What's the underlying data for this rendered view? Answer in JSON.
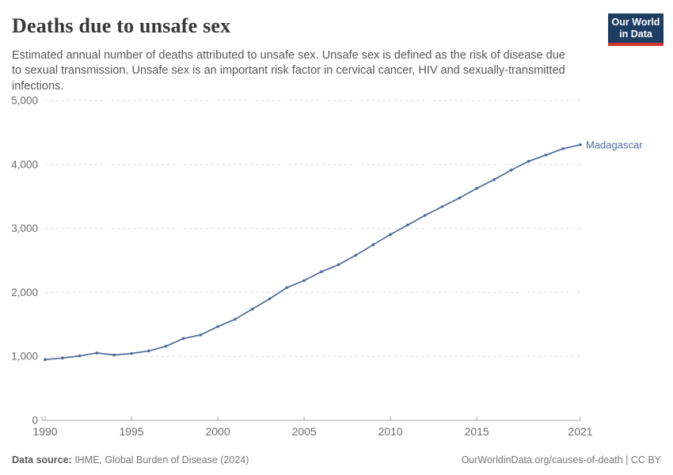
{
  "header": {
    "title": "Deaths due to unsafe sex",
    "subtitle": "Estimated annual number of deaths attributed to unsafe sex. Unsafe sex is defined as the risk of disease due to sexual transmission. Unsafe sex is an important risk factor in cervical cancer, HIV and sexually-transmitted infections."
  },
  "logo": {
    "line1": "Our World",
    "line2": "in Data",
    "bg_color": "#1d3d63",
    "bar_color": "#d0342c"
  },
  "chart_data": {
    "type": "line",
    "title": "Deaths due to unsafe sex",
    "entity_label": "Madagascar",
    "x": [
      1990,
      1991,
      1992,
      1993,
      1994,
      1995,
      1996,
      1997,
      1998,
      1999,
      2000,
      2001,
      2002,
      2003,
      2004,
      2005,
      2006,
      2007,
      2008,
      2009,
      2010,
      2011,
      2012,
      2013,
      2014,
      2015,
      2016,
      2017,
      2018,
      2019,
      2020,
      2021
    ],
    "series": [
      {
        "name": "Madagascar",
        "values": [
          950,
          975,
          1008,
          1055,
          1022,
          1046,
          1085,
          1160,
          1280,
          1335,
          1466,
          1580,
          1740,
          1900,
          2075,
          2186,
          2323,
          2434,
          2583,
          2745,
          2906,
          3055,
          3204,
          3341,
          3478,
          3627,
          3764,
          3913,
          4049,
          4149,
          4248,
          4310
        ]
      }
    ],
    "x_ticks": [
      1990,
      1995,
      2000,
      2005,
      2010,
      2015,
      2021
    ],
    "y_ticks": [
      0,
      1000,
      2000,
      3000,
      4000,
      5000
    ],
    "xlim": [
      1990,
      2021
    ],
    "ylim": [
      0,
      5000
    ],
    "grid": true,
    "legend_position": "line-end",
    "line_color": "#4c6a9c",
    "label_color": "#4c6a9c",
    "grid_color": "#dcdcdc",
    "axis_color": "#a9a9a9"
  },
  "footer": {
    "source_label": "Data source:",
    "source_text": " IHME, Global Burden of Disease (2024)",
    "right_text": "OurWorldinData.org/causes-of-death | CC BY"
  }
}
